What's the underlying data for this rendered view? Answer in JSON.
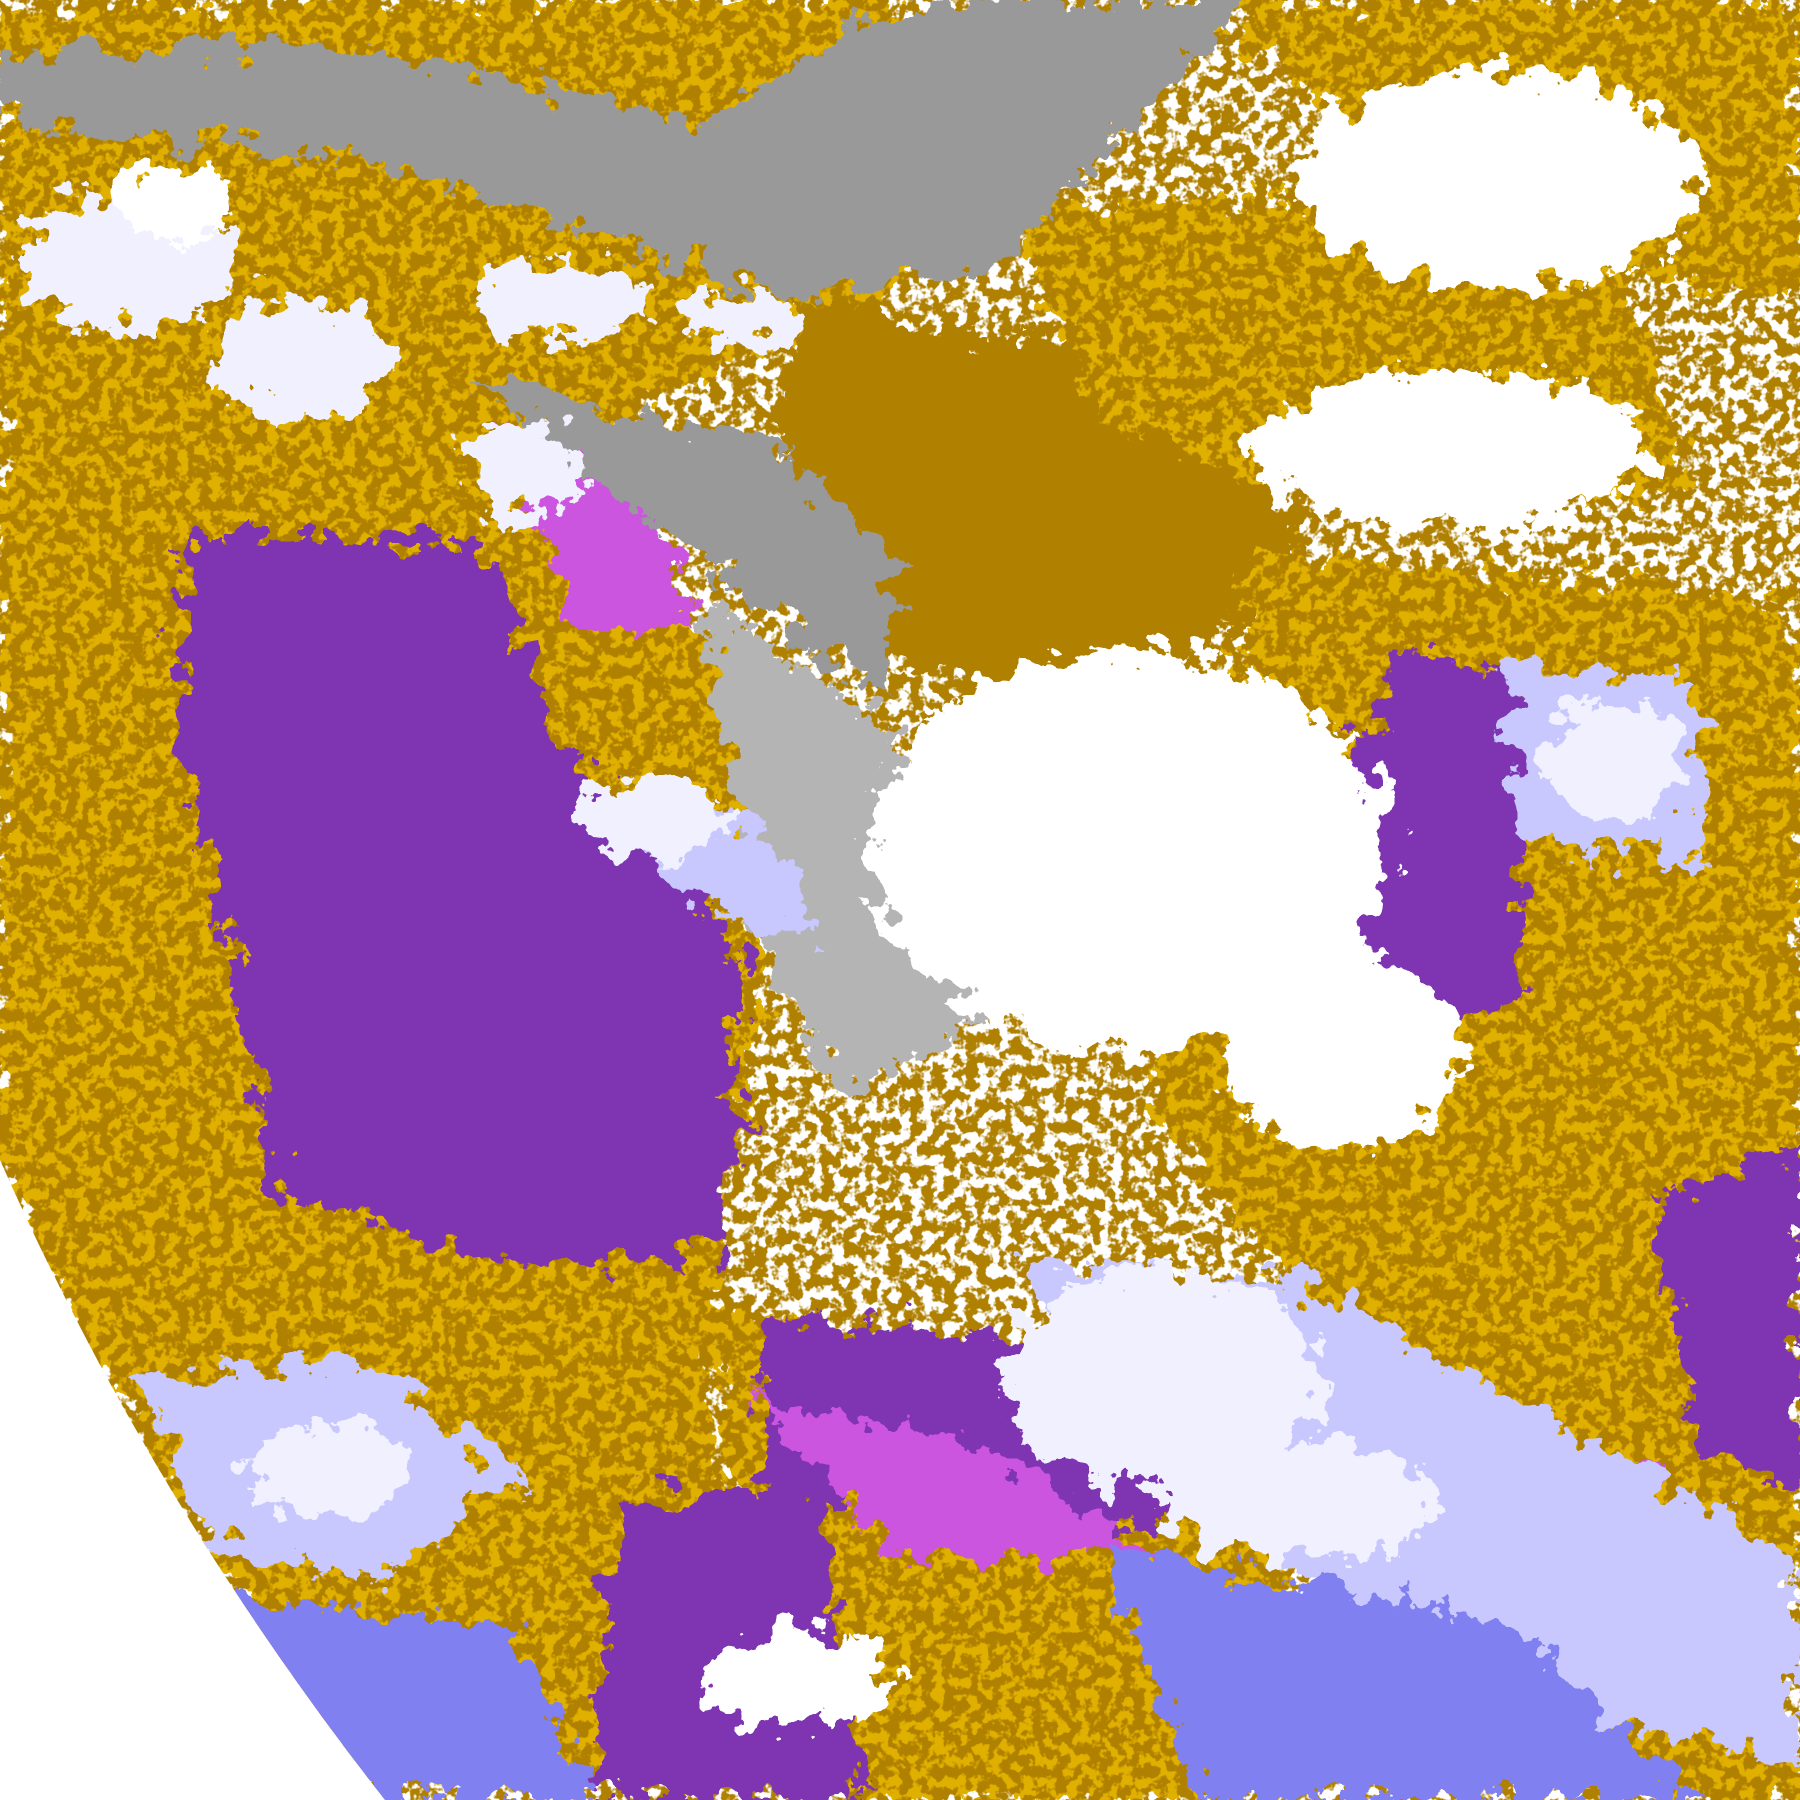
{
  "image": {
    "kind": "satellite cloud-type classification",
    "colors": {
      "background": "#ffffff",
      "gold": "#e0b000",
      "dark_gold": "#b08000",
      "purple": "#7f35b2",
      "magenta": "#cc55e0",
      "lavender": "#f0f0ff",
      "light_periwinkle": "#c8c8ff",
      "periwinkle": "#8080f0",
      "gray": "#999999",
      "light_gray": "#b4b4b4"
    }
  }
}
